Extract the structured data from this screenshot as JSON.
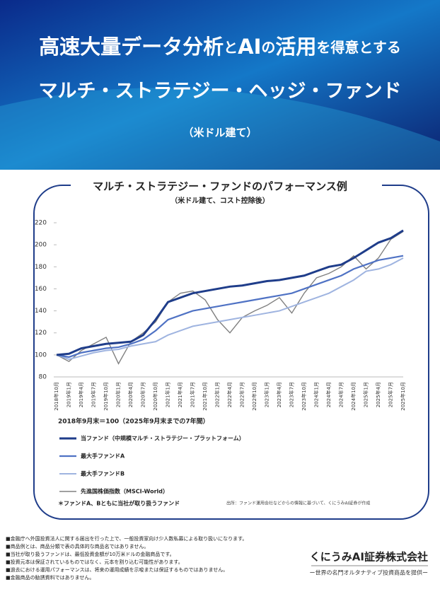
{
  "header": {
    "title_parts": [
      "高速大量データ分析",
      "と",
      "AI",
      "の",
      "活用",
      "を得意とする"
    ],
    "title2": "マルチ・ストラテジー・ヘッジ・ファンド",
    "subtitle": "（米ドル建て）"
  },
  "chart_data": {
    "type": "line",
    "title": "マルチ・ストラテジー・ファンドのパフォーマンス例",
    "subtitle": "（米ドル建て、コスト控除後）",
    "note": "2018年9月末＝100（2025年9月末までの7年間）",
    "categories": [
      "2018年10月",
      "2019年1月",
      "2019年4月",
      "2019年7月",
      "2019年10月",
      "2020年1月",
      "2020年4月",
      "2020年7月",
      "2020年10月",
      "2021年1月",
      "2021年4月",
      "2021年7月",
      "2021年10月",
      "2022年1月",
      "2022年4月",
      "2022年7月",
      "2022年10月",
      "2023年1月",
      "2023年4月",
      "2023年7月",
      "2023年10月",
      "2024年1月",
      "2024年4月",
      "2024年7月",
      "2024年10月",
      "2025年1月",
      "2025年4月",
      "2025年7月",
      "2025年10月"
    ],
    "series": [
      {
        "name": "当ファンド（中規模マルチ・ストラテジー・プラットフォーム）",
        "color": "#1f3d8a",
        "values": [
          100,
          101,
          106,
          108,
          110,
          111,
          112,
          118,
          132,
          148,
          152,
          156,
          158,
          160,
          162,
          163,
          165,
          167,
          168,
          170,
          172,
          176,
          180,
          182,
          188,
          195,
          202,
          206,
          213
        ]
      },
      {
        "name": "最大手ファンドA",
        "color": "#4f72c4",
        "values": [
          100,
          98,
          102,
          104,
          106,
          107,
          110,
          114,
          122,
          132,
          136,
          140,
          142,
          144,
          146,
          148,
          150,
          152,
          154,
          156,
          160,
          164,
          168,
          172,
          178,
          182,
          186,
          188,
          190
        ]
      },
      {
        "name": "最大手ファンドB",
        "color": "#9fb4e0",
        "values": [
          100,
          96,
          99,
          102,
          104,
          105,
          108,
          110,
          112,
          118,
          122,
          126,
          128,
          130,
          132,
          134,
          136,
          138,
          140,
          144,
          148,
          152,
          156,
          162,
          168,
          176,
          178,
          182,
          188
        ]
      },
      {
        "name": "先進国株価指数（MSCI-World）",
        "color": "#808080",
        "values": [
          100,
          94,
          104,
          110,
          116,
          92,
          112,
          120,
          130,
          148,
          156,
          158,
          150,
          132,
          120,
          134,
          140,
          145,
          152,
          138,
          156,
          170,
          174,
          180,
          190,
          178,
          188,
          205,
          212
        ]
      }
    ],
    "ylim": [
      80,
      220
    ],
    "yticks": [
      80,
      100,
      120,
      140,
      160,
      180,
      200,
      220
    ],
    "footnote": "＊ファンドA、Bともに当社が取り扱うファンド",
    "source": "出所：ファンド運用会社などからの情報に基づいて、くにうみAI証券が作成"
  },
  "disclaimers": [
    "■金融庁へ外国投資法人に関する届出を行った上で、一般投資家向け少人数私募による取り扱いになります。",
    "■商品例とは、商品分類で表の具体的な商品名ではありません。",
    "■当社が取り扱うファンドは、最低投資金額が10万米ドルの金融商品です。",
    "■投資元本は保証されているものではなく、元本を割り込む可能性があります。",
    "■過去における運用パフォーマンスは、将来の運用成績を示唆または保証するものではありません。",
    "■金融商品の勧誘資料ではありません。"
  ],
  "company": {
    "name": "くにうみAI証券株式会社",
    "tagline": "ー世界の名門オルタナティブ投資商品を提供ー"
  }
}
